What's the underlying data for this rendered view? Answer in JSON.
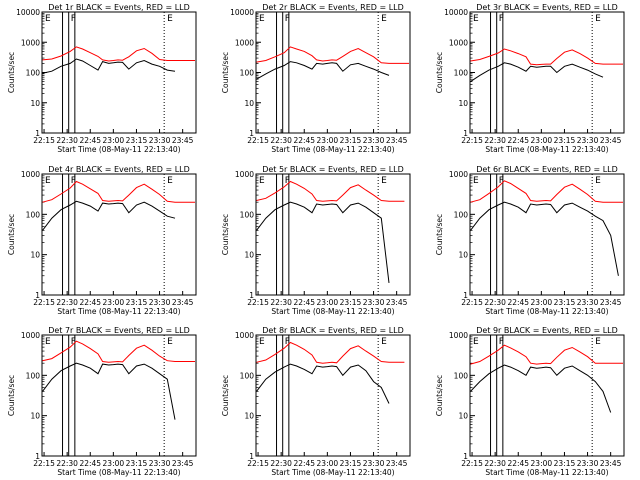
{
  "chart_data": {
    "type": "line",
    "layout": "3x3 grid",
    "yscale": "log",
    "ylim": [
      1,
      10000
    ],
    "ylabel": "Counts/sec",
    "xlabel": "Start Time (08-May-11 22:13:40)",
    "xlim": [
      "22:13:40",
      "23:53:40"
    ],
    "x_ticks": [
      "22:15",
      "22:30",
      "22:45",
      "23:00",
      "23:15",
      "23:30",
      "23:45"
    ],
    "y_ticks_top": [
      "1",
      "10",
      "100",
      "1000",
      "10000"
    ],
    "y_ticks_other": [
      "1",
      "10",
      "100",
      "1000"
    ],
    "markers": {
      "text_labels": [
        "E",
        "F",
        "E"
      ],
      "vlines_solid": [
        "22:27",
        "22:31",
        "22:35"
      ],
      "vline_dotted": "23:33"
    },
    "colors": {
      "events": "#000000",
      "lld": "#ff0000",
      "axes": "#000000"
    },
    "legend_note": "BLACK = Events, RED = LLD",
    "x_times": [
      "22:14",
      "22:20",
      "22:26",
      "22:32",
      "22:36",
      "22:40",
      "22:45",
      "22:50",
      "22:53",
      "22:57",
      "23:00",
      "23:03",
      "23:06",
      "23:10",
      "23:15",
      "23:20",
      "23:25",
      "23:30",
      "23:35",
      "23:40",
      "23:45",
      "23:50",
      "23:53"
    ],
    "panels": [
      {
        "title": "Det 1r BLACK = Events, RED = LLD",
        "ymax": 10000,
        "series": [
          {
            "name": "LLD",
            "values": [
              260,
              280,
              350,
              500,
              700,
              600,
              450,
              340,
              260,
              240,
              250,
              260,
              255,
              330,
              520,
              620,
              430,
              270,
              250,
              250,
              250,
              250,
              250
            ],
            "gaps": []
          },
          {
            "name": "Events",
            "values": [
              95,
              110,
              160,
              200,
              280,
              240,
              170,
              120,
              230,
              200,
              210,
              220,
              215,
              130,
              210,
              250,
              190,
              160,
              120,
              110,
              null,
              null,
              null
            ],
            "gaps": []
          }
        ]
      },
      {
        "title": "Det 2r BLACK = Events, RED = LLD",
        "ymax": 10000,
        "series": [
          {
            "name": "LLD",
            "values": [
              220,
              250,
              330,
              450,
              700,
              600,
              500,
              360,
              260,
              240,
              250,
              260,
              255,
              340,
              500,
              620,
              450,
              330,
              210,
              200,
              200,
              200,
              200
            ]
          },
          {
            "name": "Events",
            "values": [
              60,
              90,
              130,
              170,
              230,
              210,
              170,
              130,
              200,
              190,
              200,
              210,
              200,
              110,
              180,
              200,
              160,
              130,
              100,
              80,
              null,
              null,
              null
            ]
          }
        ]
      },
      {
        "title": "Det 3r BLACK = Events, RED = LLD",
        "ymax": 10000,
        "series": [
          {
            "name": "LLD",
            "values": [
              240,
              270,
              340,
              440,
              600,
              520,
              420,
              330,
              190,
              180,
              185,
              190,
              190,
              290,
              470,
              560,
              420,
              300,
              200,
              190,
              190,
              190,
              190
            ]
          },
          {
            "name": "Events",
            "values": [
              50,
              80,
              120,
              160,
              210,
              190,
              150,
              110,
              160,
              150,
              155,
              160,
              160,
              100,
              160,
              190,
              150,
              120,
              90,
              70,
              null,
              null,
              null
            ]
          }
        ]
      },
      {
        "title": "Det 4r BLACK = Events, RED = LLD",
        "ymax": 1000,
        "series": [
          {
            "name": "LLD",
            "values": [
              200,
              230,
              320,
              450,
              650,
              560,
              430,
              330,
              220,
              210,
              215,
              220,
              215,
              300,
              460,
              560,
              420,
              310,
              210,
              200,
              200,
              200,
              200
            ]
          },
          {
            "name": "Events",
            "values": [
              40,
              80,
              130,
              170,
              210,
              190,
              160,
              120,
              190,
              180,
              185,
              190,
              185,
              110,
              170,
              200,
              160,
              120,
              90,
              80,
              null,
              null,
              null
            ]
          }
        ]
      },
      {
        "title": "Det 5r BLACK = Events, RED = LLD",
        "ymax": 1000,
        "series": [
          {
            "name": "LLD",
            "values": [
              220,
              250,
              340,
              480,
              650,
              560,
              440,
              320,
              220,
              210,
              215,
              220,
              215,
              300,
              460,
              540,
              400,
              300,
              220,
              210,
              210,
              210,
              null
            ]
          },
          {
            "name": "Events",
            "values": [
              40,
              80,
              130,
              170,
              200,
              180,
              150,
              110,
              180,
              170,
              175,
              180,
              175,
              110,
              170,
              190,
              150,
              110,
              80,
              2,
              null,
              null,
              null
            ]
          }
        ]
      },
      {
        "title": "Det 6r BLACK = Events, RED = LLD",
        "ymax": 1000,
        "series": [
          {
            "name": "LLD",
            "values": [
              200,
              230,
              330,
              480,
              680,
              580,
              440,
              330,
              220,
              210,
              215,
              220,
              215,
              310,
              470,
              560,
              420,
              310,
              210,
              200,
              200,
              200,
              200
            ]
          },
          {
            "name": "Events",
            "values": [
              40,
              80,
              130,
              170,
              200,
              180,
              150,
              110,
              180,
              170,
              175,
              180,
              175,
              110,
              170,
              190,
              150,
              120,
              90,
              70,
              30,
              3,
              null
            ]
          }
        ]
      },
      {
        "title": "Det 7r BLACK = Events, RED = LLD",
        "ymax": 1000,
        "series": [
          {
            "name": "LLD",
            "values": [
              230,
              260,
              360,
              500,
              700,
              600,
              460,
              340,
              220,
              210,
              215,
              220,
              215,
              310,
              470,
              560,
              420,
              300,
              230,
              220,
              220,
              220,
              220
            ]
          },
          {
            "name": "Events",
            "values": [
              40,
              80,
              130,
              170,
              200,
              180,
              150,
              110,
              190,
              180,
              185,
              190,
              185,
              110,
              170,
              190,
              150,
              110,
              80,
              8,
              null,
              null,
              null
            ]
          }
        ]
      },
      {
        "title": "Det 8r BLACK = Events, RED = LLD",
        "ymax": 1000,
        "series": [
          {
            "name": "LLD",
            "values": [
              210,
              240,
              330,
              470,
              650,
              560,
              440,
              320,
              210,
              200,
              205,
              210,
              205,
              300,
              460,
              540,
              400,
              300,
              220,
              210,
              210,
              210,
              null
            ]
          },
          {
            "name": "Events",
            "values": [
              40,
              80,
              120,
              160,
              190,
              170,
              140,
              110,
              170,
              160,
              165,
              170,
              165,
              100,
              160,
              180,
              130,
              70,
              50,
              20,
              null,
              null,
              null
            ]
          }
        ]
      },
      {
        "title": "Det 9r BLACK = Events, RED = LLD",
        "ymax": 1000,
        "series": [
          {
            "name": "LLD",
            "values": [
              190,
              220,
              300,
              420,
              560,
              480,
              380,
              290,
              200,
              190,
              195,
              200,
              195,
              280,
              420,
              490,
              380,
              290,
              200,
              200,
              200,
              200,
              200
            ]
          },
          {
            "name": "Events",
            "values": [
              40,
              70,
              110,
              150,
              180,
              160,
              130,
              100,
              160,
              150,
              155,
              160,
              155,
              100,
              150,
              170,
              130,
              100,
              70,
              40,
              12,
              null,
              null
            ]
          }
        ]
      }
    ]
  }
}
